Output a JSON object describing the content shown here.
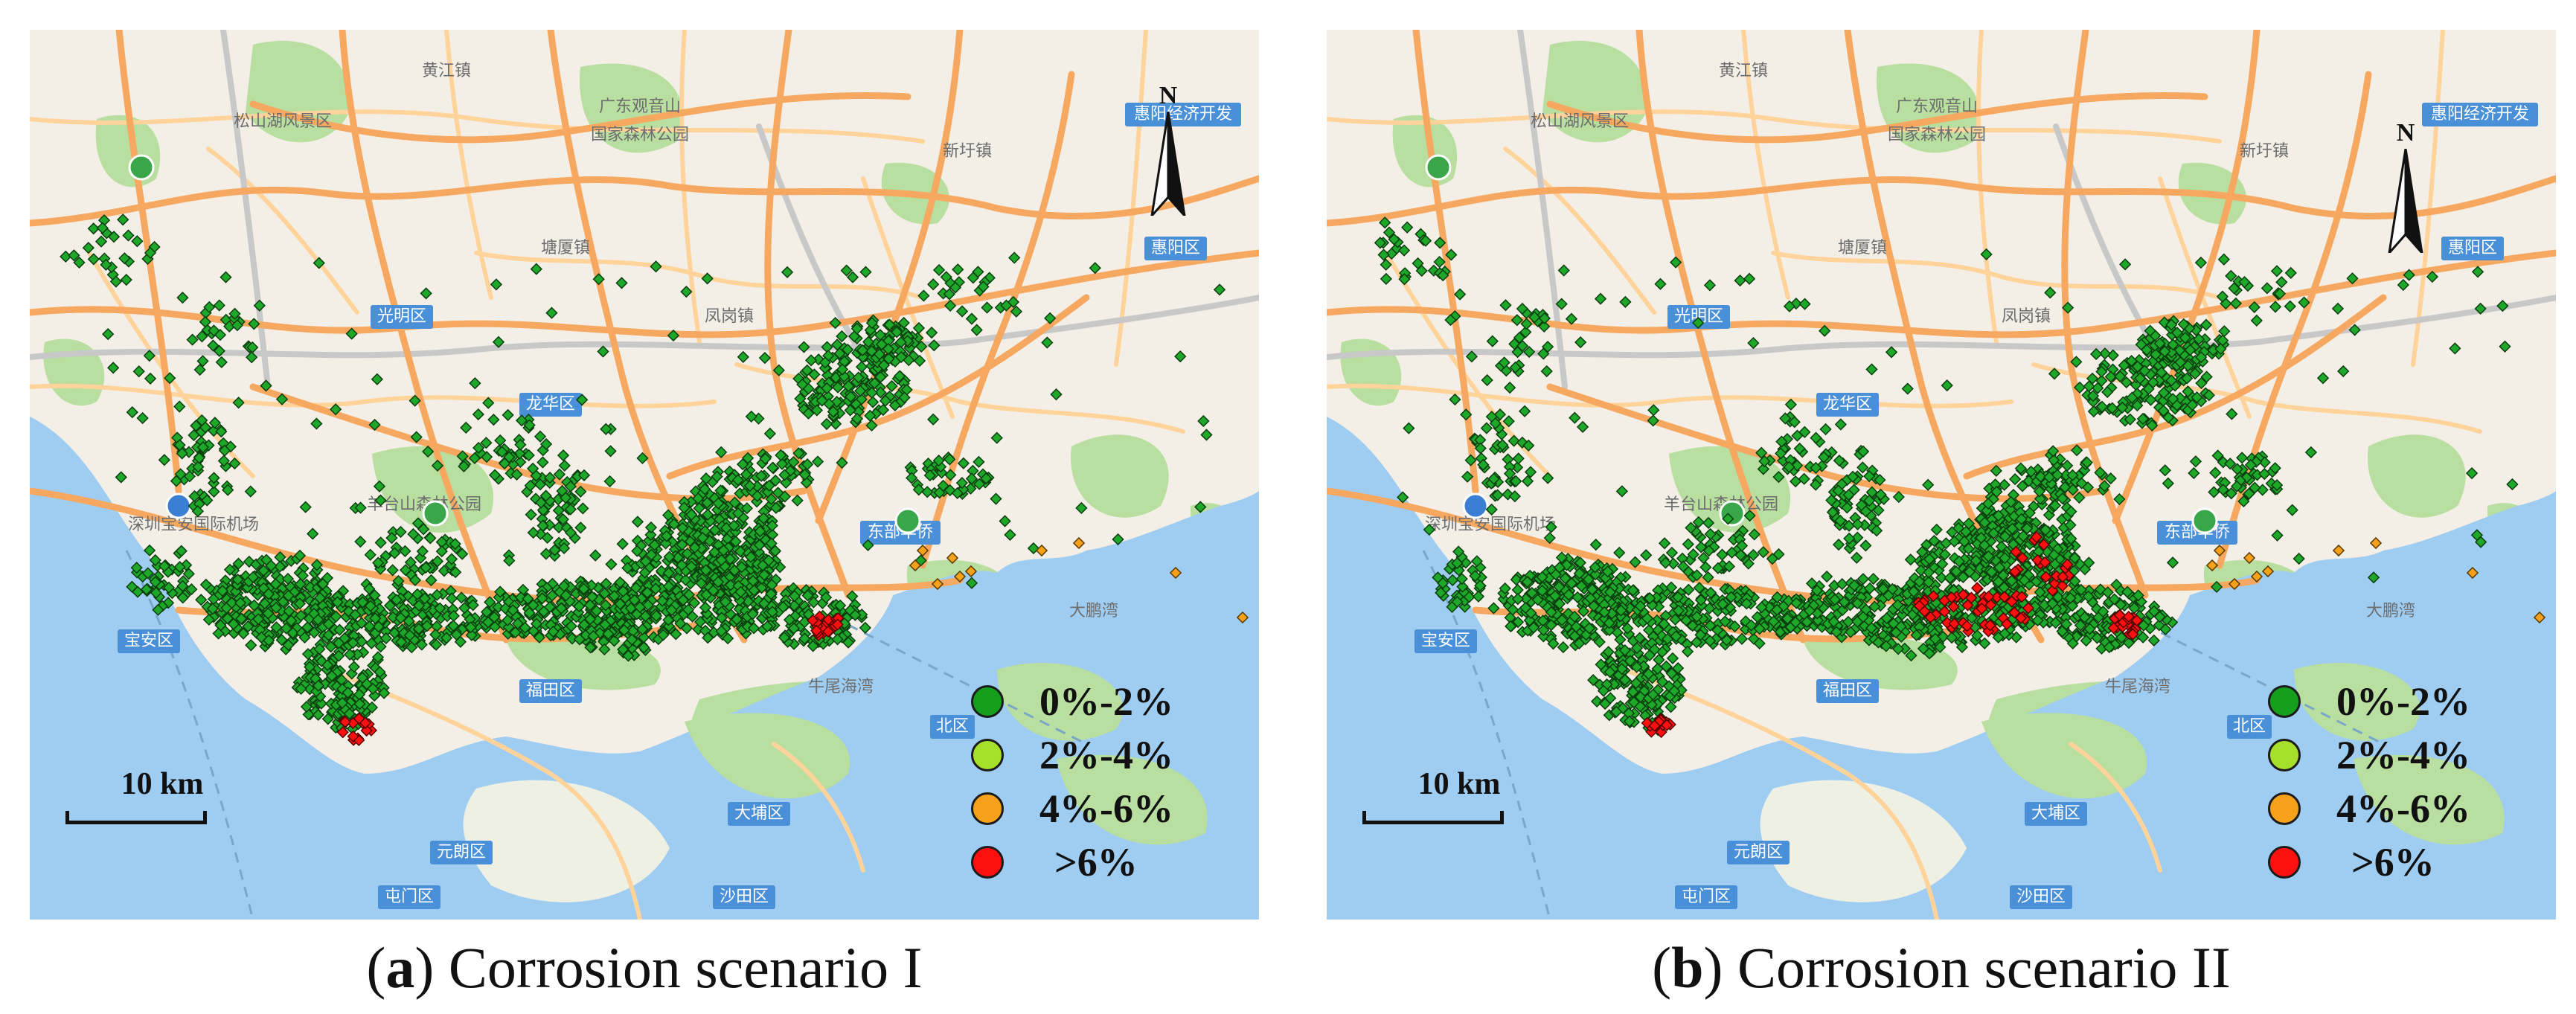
{
  "panels": [
    {
      "id": "a",
      "caption_letter": "a",
      "caption_text": "Corrosion scenario I",
      "scale_label": "10 km",
      "north_label": "N",
      "legend": [
        {
          "label": "0%-2%",
          "color": "#14a01c"
        },
        {
          "label": "2%-4%",
          "color": "#a6e02a"
        },
        {
          "label": "4%-6%",
          "color": "#f5a21a"
        },
        {
          "label": ">6%",
          "color": "#ff1010"
        }
      ],
      "map_labels": [
        "黄江镇",
        "松山湖风景区",
        "广东观音山",
        "国家森林公园",
        "新圩镇",
        "惠阳经济开发",
        "光明区",
        "凤岗镇",
        "塘厦镇",
        "龙华区",
        "羊台山森林公园",
        "深圳宝安国际机场",
        "宝安区",
        "福田区",
        "东部华侨",
        "大鹏湾",
        "牛尾海湾",
        "北区",
        "大埔区",
        "元朗区",
        "屯门区",
        "沙田区",
        "惠阳区"
      ]
    },
    {
      "id": "b",
      "caption_letter": "b",
      "caption_text": "Corrosion scenario II",
      "scale_label": "10 km",
      "north_label": "N",
      "legend": [
        {
          "label": "0%-2%",
          "color": "#14a01c"
        },
        {
          "label": "2%-4%",
          "color": "#a6e02a"
        },
        {
          "label": "4%-6%",
          "color": "#f5a21a"
        },
        {
          "label": ">6%",
          "color": "#ff1010"
        }
      ],
      "map_labels": [
        "黄江镇",
        "松山湖风景区",
        "广东观音山",
        "国家森林公园",
        "新圩镇",
        "惠阳经济开发",
        "光明区",
        "凤岗镇",
        "塘厦镇",
        "龙华区",
        "羊台山森林公园",
        "深圳宝安国际机场",
        "宝安区",
        "福田区",
        "东部华侨",
        "大鹏湾",
        "牛尾海湾",
        "北区",
        "大埔区",
        "元朗区",
        "屯门区",
        "沙田区",
        "惠阳区"
      ]
    }
  ],
  "colors": {
    "land": "#f3efe6",
    "sea": "#9fcdf2",
    "green_area": "#b8dea0",
    "major_road": "#f7a860",
    "minor_road": "#ffd39a",
    "expressway": "#c8c8c8",
    "label_box": "#4a90d9",
    "pin_green": "#39a64a"
  }
}
